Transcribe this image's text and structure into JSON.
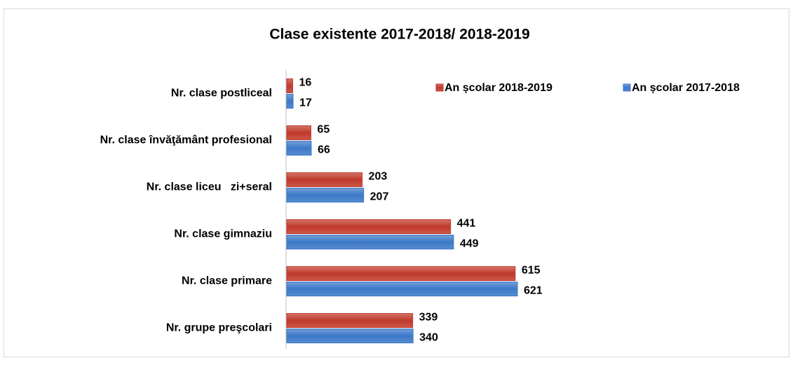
{
  "chart_data": {
    "type": "bar",
    "orientation": "horizontal",
    "title": "Clase existente 2017-2018/ 2018-2019",
    "categories": [
      "Nr. clase postliceal",
      "Nr. clase învăţământ profesional",
      "Nr. clase liceu   zi+seral",
      "Nr. clase gimnaziu",
      "Nr. clase primare",
      "Nr. grupe preşcolari"
    ],
    "series": [
      {
        "name": "An școlar 2018-2019",
        "color": "#c0392b",
        "values": [
          16,
          65,
          203,
          441,
          615,
          339
        ]
      },
      {
        "name": "An școlar 2017-2018",
        "color": "#3b78c8",
        "values": [
          17,
          66,
          207,
          449,
          621,
          340
        ]
      }
    ],
    "legend": "top-right"
  }
}
